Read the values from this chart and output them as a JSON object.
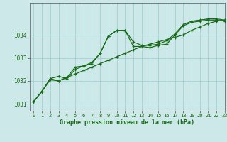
{
  "title": "Graphe pression niveau de la mer (hPa)",
  "bg_color": "#cce8e8",
  "grid_color": "#99cccc",
  "line_color": "#1a6b1a",
  "xlim": [
    -0.5,
    23
  ],
  "ylim": [
    1030.7,
    1035.4
  ],
  "xticks": [
    0,
    1,
    2,
    3,
    4,
    5,
    6,
    7,
    8,
    9,
    10,
    11,
    12,
    13,
    14,
    15,
    16,
    17,
    18,
    19,
    20,
    21,
    22,
    23
  ],
  "yticks": [
    1031,
    1032,
    1033,
    1034
  ],
  "series1": [
    1031.1,
    1031.55,
    1032.1,
    1032.2,
    1032.1,
    1032.5,
    1032.65,
    1032.8,
    1033.2,
    1033.95,
    1034.2,
    1034.2,
    1033.7,
    1033.55,
    1033.55,
    1033.6,
    1033.75,
    1034.05,
    1034.45,
    1034.6,
    1034.65,
    1034.7,
    1034.7,
    1034.65
  ],
  "series2": [
    1031.1,
    1031.55,
    1032.1,
    1032.0,
    1032.15,
    1032.6,
    1032.65,
    1032.75,
    1033.2,
    1033.95,
    1034.2,
    1034.2,
    1033.5,
    1033.5,
    1033.45,
    1033.55,
    1033.6,
    1034.0,
    1034.4,
    1034.55,
    1034.6,
    1034.65,
    1034.65,
    1034.6
  ],
  "series3": [
    1031.1,
    1031.55,
    1032.05,
    1032.0,
    1032.15,
    1032.3,
    1032.45,
    1032.6,
    1032.75,
    1032.9,
    1033.05,
    1033.2,
    1033.35,
    1033.5,
    1033.6,
    1033.7,
    1033.8,
    1033.9,
    1034.0,
    1034.2,
    1034.35,
    1034.5,
    1034.6,
    1034.65
  ],
  "title_fontsize": 6.0,
  "tick_fontsize": 5.0,
  "xlabel_pad": 1
}
